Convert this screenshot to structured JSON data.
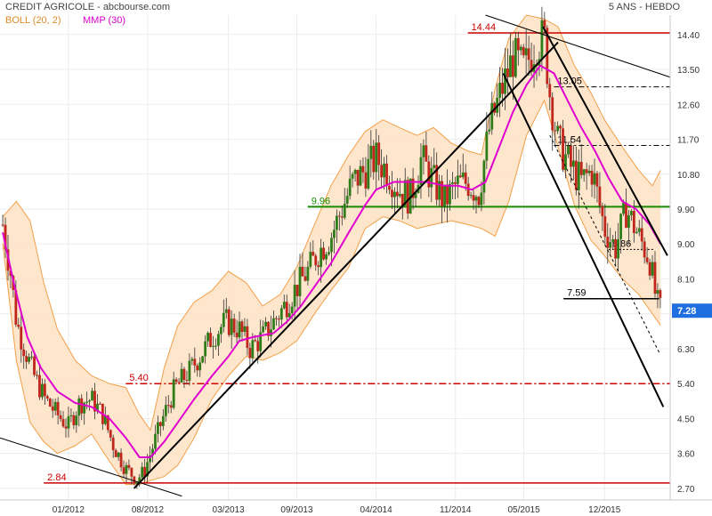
{
  "header": {
    "title": "CREDIT AGRICOLE - abcbourse.com",
    "period": "5 ANS - HEBDO",
    "legend_boll": "BOLL (20, 2)",
    "legend_mmp": "MMP (30)"
  },
  "colors": {
    "boll": "#f2a04a",
    "boll_fill": "#fde3c6",
    "mmp": "#e000d0",
    "candle_up": "#2e7d1a",
    "candle_down": "#c0261c",
    "support": "#cc0000",
    "green_line": "#1a8a00",
    "price_tag": "#1f6fe0"
  },
  "chart_data": {
    "type": "candlestick",
    "title": "CREDIT AGRICOLE - abcbourse.com",
    "period": "5 ANS - HEBDO",
    "y_range": [
      2.4,
      14.9
    ],
    "x_range": [
      2011.5,
      2016.4
    ],
    "y_ticks": [
      14.4,
      13.5,
      12.6,
      11.7,
      10.8,
      9.9,
      9.0,
      8.1,
      7.2,
      6.3,
      5.4,
      4.5,
      3.6,
      2.7
    ],
    "x_ticks": [
      {
        "label": "01/2012",
        "t": 2012.0
      },
      {
        "label": "08/2012",
        "t": 2012.58
      },
      {
        "label": "03/2013",
        "t": 2013.17
      },
      {
        "label": "09/2013",
        "t": 2013.67
      },
      {
        "label": "04/2014",
        "t": 2014.25
      },
      {
        "label": "11/2014",
        "t": 2014.83
      },
      {
        "label": "05/2015",
        "t": 2015.33
      },
      {
        "label": "12/2015",
        "t": 2015.92
      }
    ],
    "last_price": "7.28",
    "price_path": [
      [
        2011.52,
        9.5
      ],
      [
        2011.58,
        8.2
      ],
      [
        2011.62,
        7.0
      ],
      [
        2011.68,
        6.3
      ],
      [
        2011.75,
        5.6
      ],
      [
        2011.83,
        5.0
      ],
      [
        2011.92,
        4.6
      ],
      [
        2012.0,
        4.3
      ],
      [
        2012.08,
        4.9
      ],
      [
        2012.17,
        5.0
      ],
      [
        2012.25,
        4.6
      ],
      [
        2012.33,
        3.8
      ],
      [
        2012.42,
        3.2
      ],
      [
        2012.5,
        2.95
      ],
      [
        2012.55,
        3.1
      ],
      [
        2012.62,
        3.8
      ],
      [
        2012.7,
        4.6
      ],
      [
        2012.78,
        5.3
      ],
      [
        2012.88,
        5.7
      ],
      [
        2012.96,
        6.1
      ],
      [
        2013.05,
        6.6
      ],
      [
        2013.15,
        7.0
      ],
      [
        2013.25,
        6.8
      ],
      [
        2013.33,
        6.3
      ],
      [
        2013.42,
        6.6
      ],
      [
        2013.5,
        7.0
      ],
      [
        2013.58,
        7.4
      ],
      [
        2013.67,
        7.9
      ],
      [
        2013.75,
        8.3
      ],
      [
        2013.83,
        8.8
      ],
      [
        2013.92,
        9.2
      ],
      [
        2014.0,
        9.9
      ],
      [
        2014.08,
        10.6
      ],
      [
        2014.17,
        10.9
      ],
      [
        2014.25,
        11.2
      ],
      [
        2014.33,
        10.9
      ],
      [
        2014.42,
        10.4
      ],
      [
        2014.5,
        10.2
      ],
      [
        2014.58,
        11.2
      ],
      [
        2014.67,
        10.6
      ],
      [
        2014.75,
        10.1
      ],
      [
        2014.83,
        10.5
      ],
      [
        2014.92,
        10.6
      ],
      [
        2015.0,
        10.3
      ],
      [
        2015.08,
        12.0
      ],
      [
        2015.17,
        13.0
      ],
      [
        2015.25,
        13.8
      ],
      [
        2015.33,
        13.5
      ],
      [
        2015.42,
        14.2
      ],
      [
        2015.48,
        14.3
      ],
      [
        2015.52,
        12.9
      ],
      [
        2015.58,
        11.6
      ],
      [
        2015.67,
        11.0
      ],
      [
        2015.75,
        10.6
      ],
      [
        2015.83,
        10.9
      ],
      [
        2015.92,
        9.4
      ],
      [
        2016.0,
        8.9
      ],
      [
        2016.08,
        9.9
      ],
      [
        2016.17,
        9.2
      ],
      [
        2016.25,
        8.6
      ],
      [
        2016.3,
        7.5
      ],
      [
        2016.33,
        7.28
      ]
    ],
    "mmp_path": [
      [
        2011.52,
        9.3
      ],
      [
        2011.6,
        8.0
      ],
      [
        2011.7,
        6.6
      ],
      [
        2011.8,
        5.8
      ],
      [
        2011.92,
        5.2
      ],
      [
        2012.05,
        4.9
      ],
      [
        2012.17,
        4.8
      ],
      [
        2012.3,
        4.5
      ],
      [
        2012.42,
        4.0
      ],
      [
        2012.52,
        3.5
      ],
      [
        2012.6,
        3.5
      ],
      [
        2012.7,
        3.9
      ],
      [
        2012.8,
        4.4
      ],
      [
        2012.92,
        5.0
      ],
      [
        2013.05,
        5.6
      ],
      [
        2013.17,
        6.1
      ],
      [
        2013.25,
        6.5
      ],
      [
        2013.35,
        6.6
      ],
      [
        2013.5,
        6.7
      ],
      [
        2013.6,
        7.0
      ],
      [
        2013.7,
        7.4
      ],
      [
        2013.8,
        7.9
      ],
      [
        2013.92,
        8.5
      ],
      [
        2014.05,
        9.3
      ],
      [
        2014.17,
        10.0
      ],
      [
        2014.25,
        10.4
      ],
      [
        2014.38,
        10.6
      ],
      [
        2014.5,
        10.6
      ],
      [
        2014.62,
        10.6
      ],
      [
        2014.75,
        10.5
      ],
      [
        2014.85,
        10.5
      ],
      [
        2014.95,
        10.4
      ],
      [
        2015.05,
        10.6
      ],
      [
        2015.15,
        11.5
      ],
      [
        2015.25,
        12.4
      ],
      [
        2015.35,
        13.1
      ],
      [
        2015.45,
        13.6
      ],
      [
        2015.55,
        13.4
      ],
      [
        2015.65,
        12.7
      ],
      [
        2015.75,
        12.0
      ],
      [
        2015.85,
        11.4
      ],
      [
        2015.95,
        10.7
      ],
      [
        2016.05,
        10.1
      ],
      [
        2016.15,
        9.9
      ],
      [
        2016.25,
        9.5
      ],
      [
        2016.33,
        9.0
      ]
    ],
    "boll_upper": [
      [
        2011.52,
        9.7
      ],
      [
        2011.62,
        10.1
      ],
      [
        2011.72,
        9.6
      ],
      [
        2011.82,
        8.0
      ],
      [
        2011.92,
        6.8
      ],
      [
        2012.05,
        6.0
      ],
      [
        2012.17,
        5.6
      ],
      [
        2012.3,
        5.4
      ],
      [
        2012.42,
        5.3
      ],
      [
        2012.52,
        4.6
      ],
      [
        2012.6,
        4.2
      ],
      [
        2012.7,
        5.8
      ],
      [
        2012.8,
        6.9
      ],
      [
        2012.92,
        7.5
      ],
      [
        2013.05,
        7.8
      ],
      [
        2013.17,
        8.3
      ],
      [
        2013.3,
        8.0
      ],
      [
        2013.42,
        7.4
      ],
      [
        2013.55,
        7.7
      ],
      [
        2013.67,
        8.4
      ],
      [
        2013.8,
        9.5
      ],
      [
        2013.92,
        10.5
      ],
      [
        2014.05,
        11.3
      ],
      [
        2014.17,
        11.9
      ],
      [
        2014.3,
        12.2
      ],
      [
        2014.42,
        12.0
      ],
      [
        2014.55,
        11.8
      ],
      [
        2014.67,
        12.0
      ],
      [
        2014.8,
        11.6
      ],
      [
        2014.92,
        11.4
      ],
      [
        2015.02,
        11.3
      ],
      [
        2015.12,
        13.0
      ],
      [
        2015.22,
        14.3
      ],
      [
        2015.35,
        14.9
      ],
      [
        2015.48,
        14.8
      ],
      [
        2015.58,
        14.6
      ],
      [
        2015.7,
        13.6
      ],
      [
        2015.82,
        12.9
      ],
      [
        2015.92,
        12.2
      ],
      [
        2016.05,
        11.5
      ],
      [
        2016.17,
        10.9
      ],
      [
        2016.27,
        10.5
      ],
      [
        2016.33,
        10.9
      ]
    ],
    "boll_lower": [
      [
        2011.52,
        9.0
      ],
      [
        2011.62,
        6.0
      ],
      [
        2011.72,
        4.4
      ],
      [
        2011.82,
        3.9
      ],
      [
        2011.92,
        3.6
      ],
      [
        2012.05,
        3.8
      ],
      [
        2012.17,
        4.1
      ],
      [
        2012.3,
        3.4
      ],
      [
        2012.42,
        2.8
      ],
      [
        2012.52,
        2.8
      ],
      [
        2012.6,
        2.9
      ],
      [
        2012.7,
        3.0
      ],
      [
        2012.8,
        3.3
      ],
      [
        2012.92,
        4.0
      ],
      [
        2013.05,
        5.0
      ],
      [
        2013.17,
        5.6
      ],
      [
        2013.3,
        6.1
      ],
      [
        2013.42,
        6.0
      ],
      [
        2013.55,
        6.2
      ],
      [
        2013.67,
        6.5
      ],
      [
        2013.8,
        7.2
      ],
      [
        2013.92,
        7.8
      ],
      [
        2014.05,
        8.4
      ],
      [
        2014.17,
        9.4
      ],
      [
        2014.3,
        9.7
      ],
      [
        2014.42,
        9.6
      ],
      [
        2014.55,
        9.4
      ],
      [
        2014.67,
        9.5
      ],
      [
        2014.8,
        9.6
      ],
      [
        2014.92,
        9.5
      ],
      [
        2015.02,
        9.4
      ],
      [
        2015.12,
        9.2
      ],
      [
        2015.22,
        10.1
      ],
      [
        2015.35,
        11.8
      ],
      [
        2015.48,
        12.7
      ],
      [
        2015.58,
        11.5
      ],
      [
        2015.7,
        10.0
      ],
      [
        2015.82,
        9.1
      ],
      [
        2015.92,
        8.7
      ],
      [
        2016.05,
        8.1
      ],
      [
        2016.17,
        7.7
      ],
      [
        2016.27,
        7.2
      ],
      [
        2016.33,
        6.9
      ]
    ],
    "horizontal_levels": [
      {
        "label": "14.44",
        "value": 14.44,
        "t_from": 2014.92,
        "t_to": 2016.4,
        "style": "solid-red"
      },
      {
        "label": "13.05",
        "value": 13.05,
        "t_from": 2015.55,
        "t_to": 2016.4,
        "style": "dashdot-black"
      },
      {
        "label": "11.54",
        "value": 11.54,
        "t_from": 2015.55,
        "t_to": 2016.4,
        "style": "dashdot-black"
      },
      {
        "label": "9.96",
        "value": 9.96,
        "t_from": 2013.75,
        "t_to": 2016.4,
        "style": "solid-green"
      },
      {
        "label": "8.86",
        "value": 8.86,
        "t_from": 2015.95,
        "t_to": 2016.28,
        "style": "dotted-black"
      },
      {
        "label": "7.59",
        "value": 7.59,
        "t_from": 2015.62,
        "t_to": 2016.32,
        "style": "solid-black"
      },
      {
        "label": "5.40",
        "value": 5.4,
        "t_from": 2012.42,
        "t_to": 2016.4,
        "style": "dashdot-red"
      },
      {
        "label": "2.84",
        "value": 2.84,
        "t_from": 2011.82,
        "t_to": 2016.4,
        "style": "solid-red"
      }
    ],
    "trend_lines": [
      {
        "from": [
          2011.5,
          4.0
        ],
        "to": [
          2012.83,
          2.5
        ],
        "width": 1
      },
      {
        "from": [
          2012.48,
          2.7
        ],
        "to": [
          2015.58,
          14.2
        ],
        "width": 2
      },
      {
        "from": [
          2015.05,
          14.9
        ],
        "to": [
          2016.4,
          13.3
        ],
        "width": 1
      },
      {
        "from": [
          2015.18,
          13.4
        ],
        "to": [
          2016.35,
          4.8
        ],
        "width": 2
      },
      {
        "from": [
          2015.47,
          14.6
        ],
        "to": [
          2016.38,
          8.7
        ],
        "width": 2
      },
      {
        "from": [
          2015.52,
          11.8
        ],
        "to": [
          2016.32,
          6.2
        ],
        "width": 1,
        "dash": true
      }
    ]
  }
}
